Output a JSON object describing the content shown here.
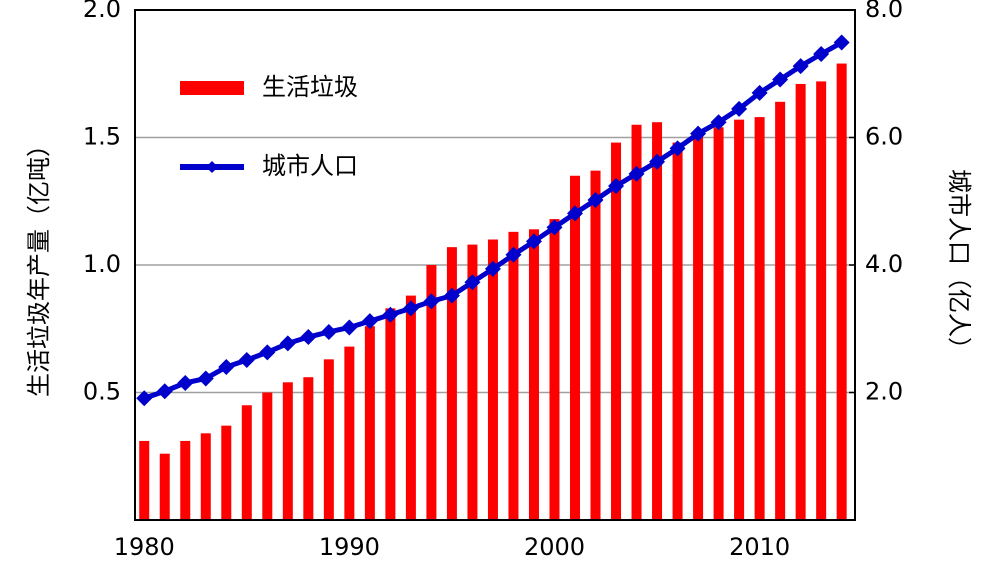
{
  "chart_data": {
    "type": "bar_line",
    "ylabel": "生活垃圾年产量（亿吨）",
    "y2label": "城市人口（亿人）",
    "x": [
      1980,
      1981,
      1982,
      1983,
      1984,
      1985,
      1986,
      1987,
      1988,
      1989,
      1990,
      1991,
      1992,
      1993,
      1994,
      1995,
      1996,
      1997,
      1998,
      1999,
      2000,
      2001,
      2002,
      2003,
      2004,
      2005,
      2006,
      2007,
      2008,
      2009,
      2010,
      2011,
      2012,
      2013,
      2014
    ],
    "series": [
      {
        "name": "生活垃圾",
        "type": "bar",
        "color": "#ff0000",
        "values": [
          0.31,
          0.26,
          0.31,
          0.34,
          0.37,
          0.45,
          0.5,
          0.54,
          0.56,
          0.63,
          0.68,
          0.76,
          0.83,
          0.88,
          1.0,
          1.07,
          1.08,
          1.1,
          1.13,
          1.14,
          1.18,
          1.35,
          1.37,
          1.48,
          1.55,
          1.56,
          1.48,
          1.52,
          1.54,
          1.57,
          1.58,
          1.64,
          1.71,
          1.72,
          1.79
        ]
      },
      {
        "name": "城市人口",
        "type": "line",
        "axis": "y2",
        "color": "#0000cc",
        "values": [
          1.91,
          2.02,
          2.15,
          2.22,
          2.4,
          2.51,
          2.63,
          2.77,
          2.87,
          2.95,
          3.02,
          3.12,
          3.22,
          3.32,
          3.43,
          3.52,
          3.73,
          3.94,
          4.16,
          4.37,
          4.59,
          4.81,
          5.02,
          5.24,
          5.43,
          5.62,
          5.83,
          6.06,
          6.24,
          6.45,
          6.7,
          6.91,
          7.12,
          7.31,
          7.49
        ]
      }
    ],
    "xlim": [
      1979.55,
      2014.65
    ],
    "xticks": [
      1980,
      1990,
      2000,
      2010
    ],
    "ylim": [
      0,
      2
    ],
    "yticks": [
      0.5,
      {
        "value": 1,
        "label": "1.0"
      },
      1.5,
      {
        "value": 2,
        "label": "2.0"
      }
    ],
    "y2lim": [
      0,
      8
    ],
    "y2ticks": [
      {
        "value": 2,
        "label": "2.0"
      },
      {
        "value": 4,
        "label": "4.0"
      },
      {
        "value": 6,
        "label": "6.0"
      },
      {
        "value": 8,
        "label": "8.0"
      }
    ],
    "grid": true,
    "legend": "upper left"
  }
}
